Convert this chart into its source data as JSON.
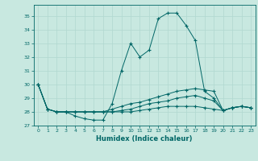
{
  "title": "",
  "xlabel": "Humidex (Indice chaleur)",
  "ylabel": "",
  "xlim": [
    -0.5,
    23.5
  ],
  "ylim": [
    27,
    35.8
  ],
  "yticks": [
    27,
    28,
    29,
    30,
    31,
    32,
    33,
    34,
    35
  ],
  "xticks": [
    0,
    1,
    2,
    3,
    4,
    5,
    6,
    7,
    8,
    9,
    10,
    11,
    12,
    13,
    14,
    15,
    16,
    17,
    18,
    19,
    20,
    21,
    22,
    23
  ],
  "bg_color": "#c8e8e0",
  "line_color": "#006666",
  "grid_color": "#b0d8d0",
  "series": [
    [
      30.0,
      28.2,
      28.0,
      28.0,
      27.7,
      27.5,
      27.4,
      27.4,
      28.6,
      31.0,
      33.0,
      32.0,
      32.5,
      34.8,
      35.2,
      35.2,
      34.3,
      33.2,
      29.5,
      29.0,
      28.1,
      28.3,
      28.4,
      28.3
    ],
    [
      30.0,
      28.2,
      28.0,
      28.0,
      28.0,
      28.0,
      28.0,
      28.0,
      28.2,
      28.4,
      28.6,
      28.7,
      28.9,
      29.1,
      29.3,
      29.5,
      29.6,
      29.7,
      29.6,
      29.5,
      28.1,
      28.3,
      28.4,
      28.3
    ],
    [
      30.0,
      28.2,
      28.0,
      28.0,
      28.0,
      28.0,
      28.0,
      28.0,
      28.0,
      28.1,
      28.2,
      28.4,
      28.6,
      28.7,
      28.8,
      29.0,
      29.1,
      29.2,
      29.0,
      28.8,
      28.1,
      28.3,
      28.4,
      28.3
    ],
    [
      30.0,
      28.2,
      28.0,
      28.0,
      28.0,
      28.0,
      28.0,
      28.0,
      28.0,
      28.0,
      28.0,
      28.1,
      28.2,
      28.3,
      28.4,
      28.4,
      28.4,
      28.4,
      28.3,
      28.2,
      28.1,
      28.3,
      28.4,
      28.3
    ]
  ]
}
